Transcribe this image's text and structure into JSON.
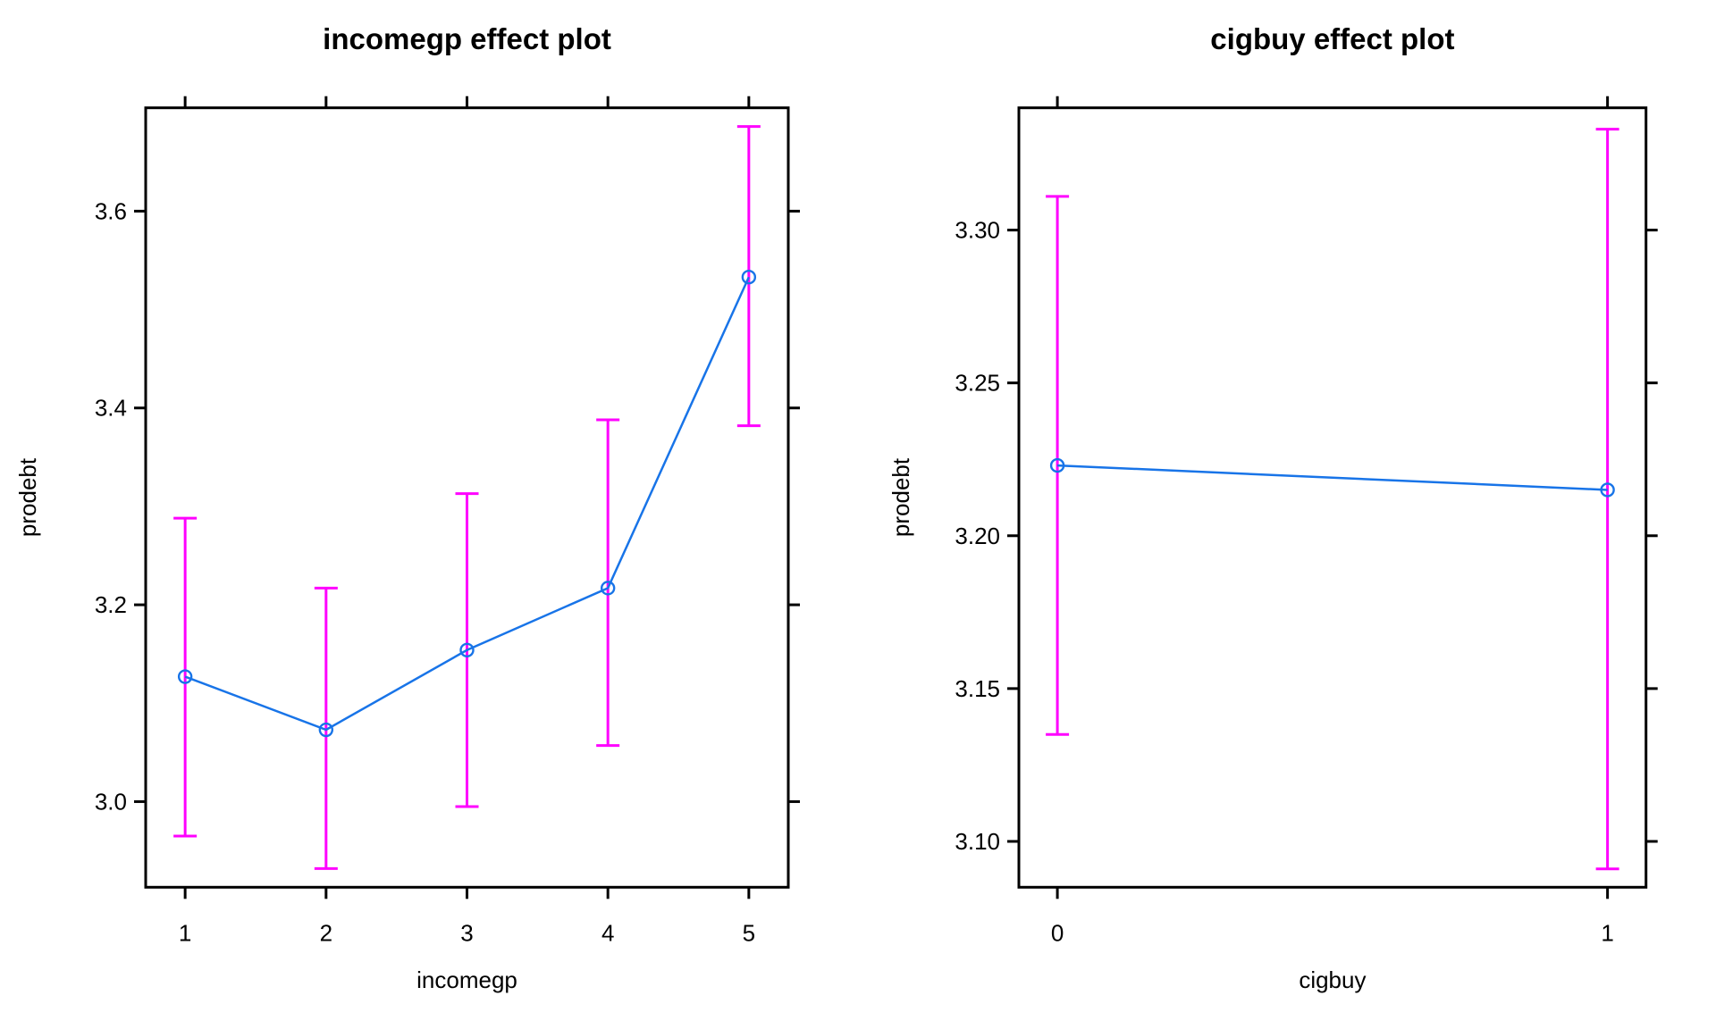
{
  "figure": {
    "background": "#ffffff",
    "colors": {
      "fit_line": "#1874e8",
      "error_bar": "#ff00ff",
      "axis": "#000000",
      "text": "#000000"
    },
    "marker": "open-circle"
  },
  "chart_data": [
    {
      "type": "line",
      "title": "incomegp effect plot",
      "xlabel": "incomegp",
      "ylabel": "prodebt",
      "x": [
        1,
        2,
        3,
        4,
        5
      ],
      "xtick_labels": [
        "1",
        "2",
        "3",
        "4",
        "5"
      ],
      "series": [
        {
          "name": "fitted effect",
          "values": [
            3.127,
            3.073,
            3.154,
            3.217,
            3.533
          ]
        },
        {
          "name": "lower 95% CI",
          "values": [
            2.965,
            2.932,
            2.995,
            3.057,
            3.382
          ]
        },
        {
          "name": "upper 95% CI",
          "values": [
            3.288,
            3.217,
            3.313,
            3.388,
            3.686
          ]
        }
      ],
      "yticks": [
        3.0,
        3.2,
        3.4,
        3.6
      ],
      "ytick_labels": [
        "3.0",
        "3.2",
        "3.4",
        "3.6"
      ],
      "xlim": [
        0.72,
        5.28
      ],
      "ylim": [
        2.913,
        3.705
      ],
      "grid": "off",
      "legend": "none"
    },
    {
      "type": "line",
      "title": "cigbuy effect plot",
      "xlabel": "cigbuy",
      "ylabel": "prodebt",
      "x": [
        0,
        1
      ],
      "xtick_labels": [
        "0",
        "1"
      ],
      "series": [
        {
          "name": "fitted effect",
          "values": [
            3.223,
            3.215
          ]
        },
        {
          "name": "lower 95% CI",
          "values": [
            3.135,
            3.091
          ]
        },
        {
          "name": "upper 95% CI",
          "values": [
            3.311,
            3.333
          ]
        }
      ],
      "yticks": [
        3.1,
        3.15,
        3.2,
        3.25,
        3.3
      ],
      "ytick_labels": [
        "3.10",
        "3.15",
        "3.20",
        "3.25",
        "3.30"
      ],
      "xlim": [
        -0.07,
        1.07
      ],
      "ylim": [
        3.085,
        3.34
      ],
      "grid": "off",
      "legend": "none"
    }
  ]
}
